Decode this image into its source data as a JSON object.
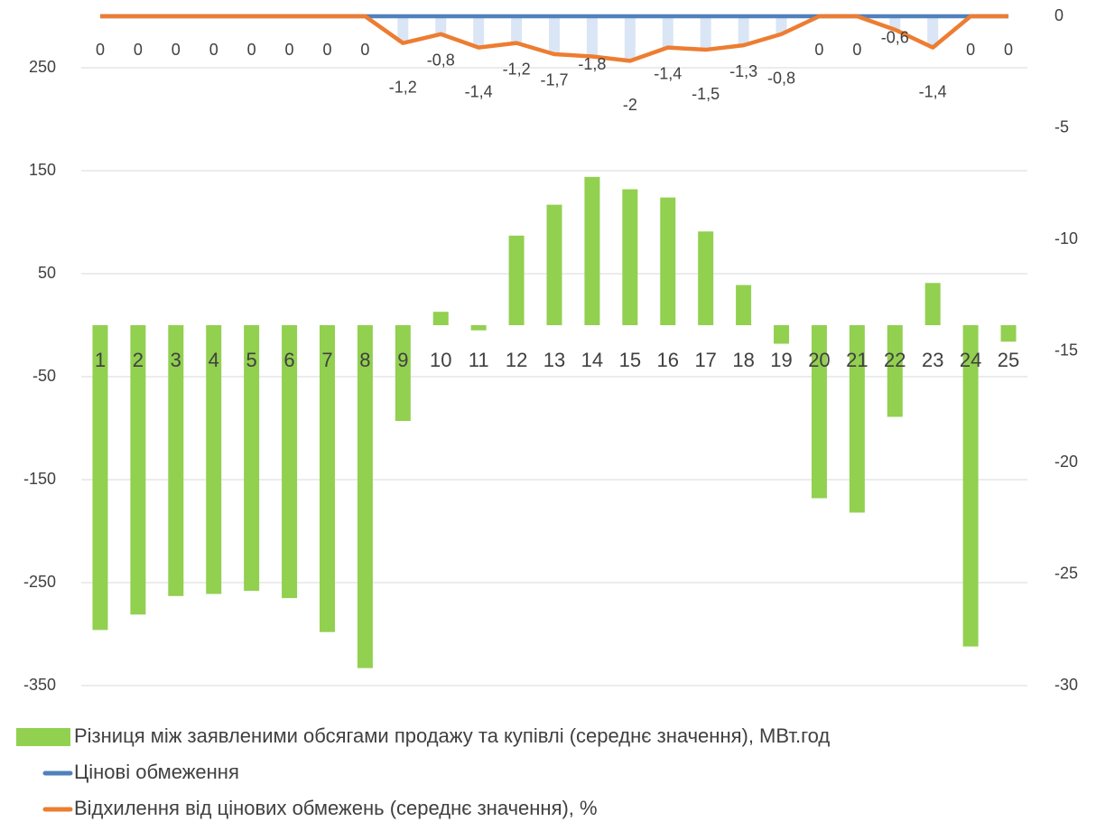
{
  "chart_data": {
    "type": "bar",
    "categories": [
      "1",
      "2",
      "3",
      "4",
      "5",
      "6",
      "7",
      "8",
      "9",
      "10",
      "11",
      "12",
      "13",
      "14",
      "15",
      "16",
      "17",
      "18",
      "19",
      "20",
      "21",
      "22",
      "23",
      "24",
      "25"
    ],
    "series": [
      {
        "name": "Різниця між заявленими обсягами продажу та купівлі (середнє значення), МВт.год",
        "type": "bar",
        "color": "#92d050",
        "values": [
          -296,
          -281,
          -263,
          -261,
          -258,
          -265,
          -298,
          -333,
          -93,
          13,
          -5,
          87,
          117,
          144,
          132,
          124,
          91,
          39,
          -18,
          -168,
          -182,
          -89,
          41,
          -312,
          -16
        ]
      },
      {
        "name": "Цінові обмеження",
        "type": "line",
        "axis": "y2",
        "color": "#4f81bd",
        "values": [
          0,
          0,
          0,
          0,
          0,
          0,
          0,
          0,
          0,
          0,
          0,
          0,
          0,
          0,
          0,
          0,
          0,
          0,
          0,
          0,
          0,
          0,
          0,
          0,
          0
        ]
      },
      {
        "name": "Відхилення від цінових обмежень (середнє значення), %",
        "type": "line",
        "axis": "y2",
        "color": "#ed7d31",
        "values": [
          0,
          0,
          0,
          0,
          0,
          0,
          0,
          0,
          -1.2,
          -0.8,
          -1.4,
          -1.2,
          -1.7,
          -1.8,
          -2,
          -1.4,
          -1.5,
          -1.3,
          -0.8,
          0,
          0,
          -0.6,
          -1.4,
          0,
          0
        ],
        "value_labels": [
          "0",
          "0",
          "0",
          "0",
          "0",
          "0",
          "0",
          "0",
          "-1,2",
          "-0,8",
          "-1,4",
          "-1,2",
          "-1,7",
          "-1,8",
          "-2",
          "-1,4",
          "-1,5",
          "-1,3",
          "-0,8",
          "0",
          "0",
          "-0,6",
          "-1,4",
          "0",
          "0"
        ]
      }
    ],
    "ylim": [
      -350,
      300
    ],
    "yticks": [
      -350,
      -250,
      -150,
      -50,
      50,
      150,
      250
    ],
    "y2lim": [
      -30,
      0
    ],
    "y2ticks": [
      -30,
      -25,
      -20,
      -15,
      -10,
      -5,
      0
    ],
    "grid": true,
    "legend": "bottom"
  }
}
